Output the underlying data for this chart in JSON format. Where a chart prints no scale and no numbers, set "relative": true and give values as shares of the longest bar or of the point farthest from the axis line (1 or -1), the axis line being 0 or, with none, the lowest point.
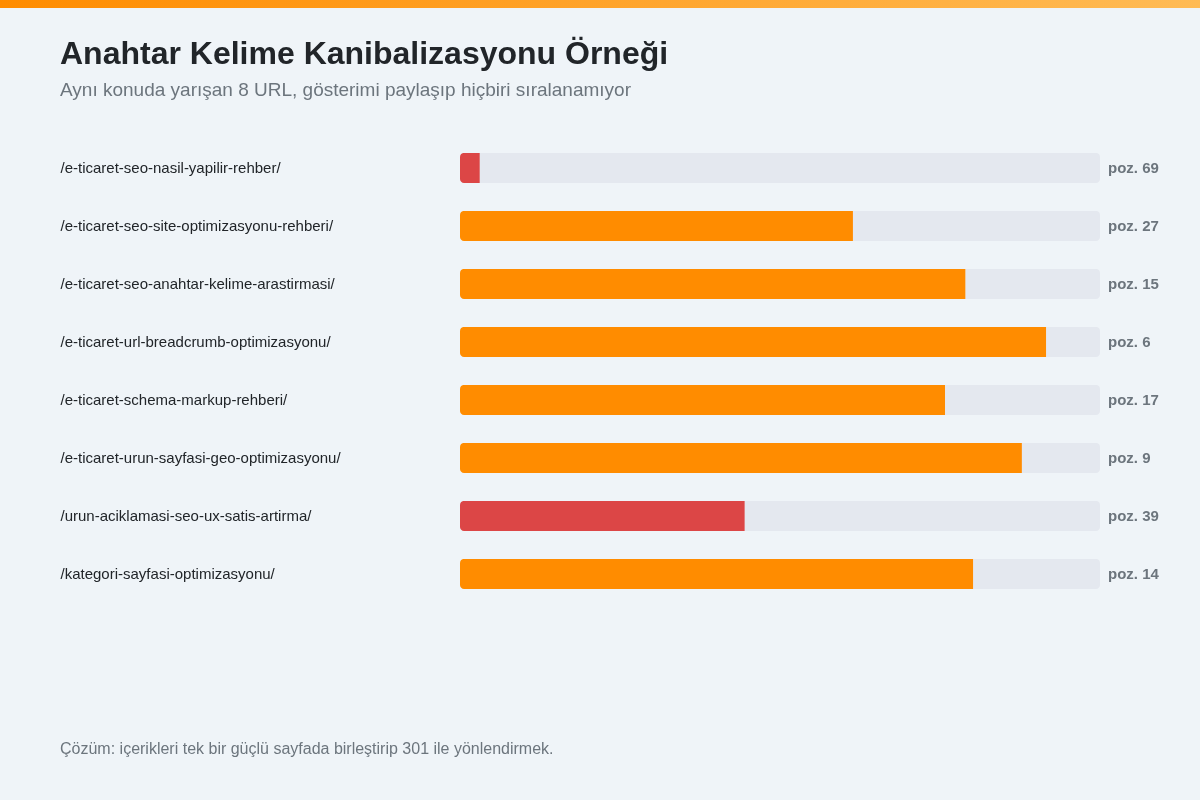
{
  "chart_data": {
    "type": "bar",
    "orientation": "horizontal",
    "stacked": true,
    "relative": true,
    "title": "Anahtar Kelime Kanibalizasyonu Örneği",
    "subtitle": "Aynı konuda yarışan 8 URL, gösterimi paylaşıp hiçbiri sıralanamıyor",
    "categories": [
      "/e-ticaret-seo-nasil-yapilir-rehber/",
      "/e-ticaret-seo-site-optimizasyonu-rehberi/",
      "/e-ticaret-seo-anahtar-kelime-arastirmasi/",
      "/e-ticaret-url-breadcrumb-optimizasyonu/",
      "/e-ticaret-schema-markup-rehberi/",
      "/e-ticaret-urun-sayfasi-geo-optimizasyonu/",
      "/urun-aciklamasi-seo-ux-satis-artirma/",
      "/kategori-sayfasi-optimizasyonu/"
    ],
    "series": [
      {
        "colors": [
          "#dc4646",
          "#ff8c00",
          "#ff8c00",
          "#ff8c00",
          "#ff8c00",
          "#ff8c00",
          "#dc4646",
          "#ff8c00"
        ],
        "values": [
          0.031,
          0.614,
          0.79,
          0.916,
          0.758,
          0.878,
          0.445,
          0.802
        ]
      },
      {
        "color": "#e4e8ef",
        "values": [
          0.969,
          0.386,
          0.21,
          0.084,
          0.242,
          0.122,
          0.555,
          0.198
        ]
      }
    ],
    "annotations": [
      "poz. 69",
      "poz. 27",
      "poz. 15",
      "poz. 6",
      "poz. 17",
      "poz. 9",
      "poz. 39",
      "poz. 14",
      "Çözüm: içerikleri tek bir güçlü sayfada birleştirip 301 ile yönlendirmek."
    ]
  }
}
